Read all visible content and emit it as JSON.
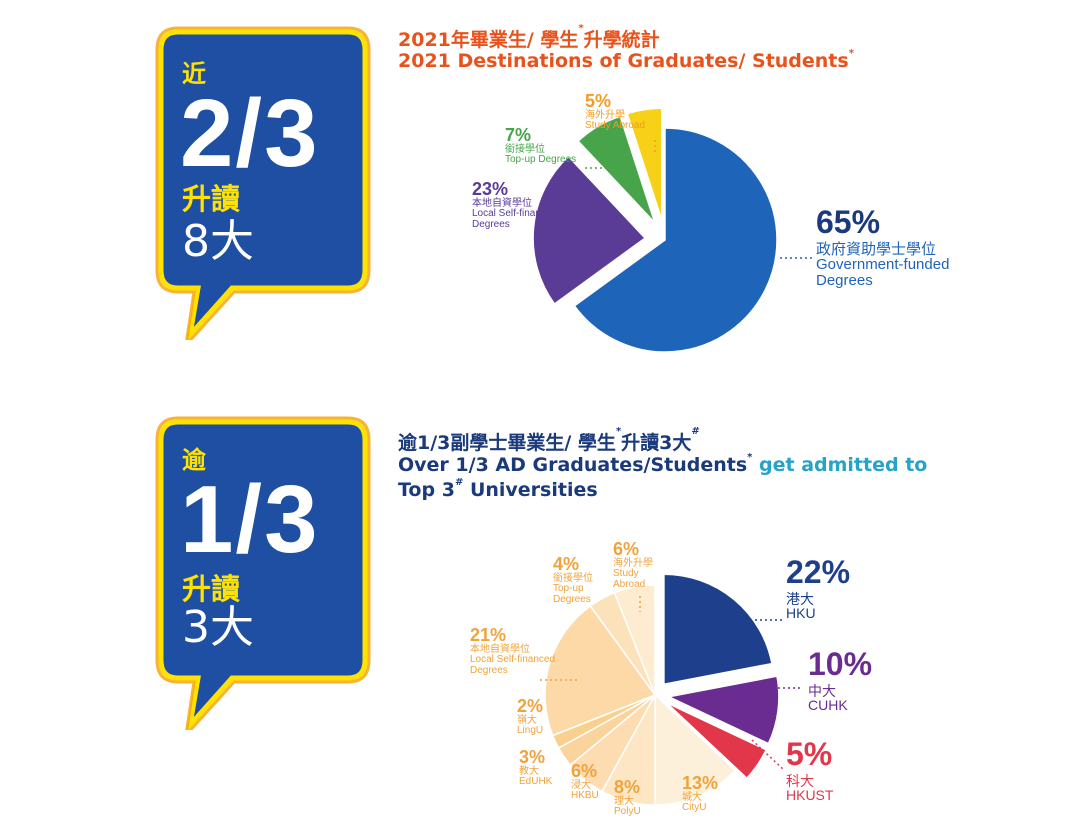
{
  "colors": {
    "bubble_fill": "#1f4fa3",
    "bubble_border": "#ffe200",
    "bubble_glow": "#f5a000",
    "title_orange": "#e8531d",
    "title_navy": "#1b3a7b",
    "title_teal": "#25a3c9",
    "gov_blue": "#1e64b8",
    "self_fin_purple": "#5a3c96",
    "topup_green": "#47a44b",
    "abroad_orange": "#f39b1f",
    "abroad_yellow": "#f7d117",
    "hku_navy": "#1d3f8c",
    "cuhk_purple": "#6a2c91",
    "hkust_red": "#e2364a",
    "peach_text": "#f0a33a",
    "peach_light": "#fbe3bf"
  },
  "section1": {
    "bubble": {
      "prefix": "近",
      "fraction": "2/3",
      "action": "升讀",
      "universities": "8大"
    },
    "title_zh": "2021年畢業生/ 學生",
    "title_zh_mark": "*",
    "title_zh_tail": "升學統計",
    "title_en": "2021 Destinations of Graduates/ Students",
    "title_en_mark": "*",
    "labels": {
      "gov": {
        "pct": "65%",
        "zh": "政府資助學士學位",
        "en1": "Government-funded",
        "en2": "Degrees"
      },
      "local": {
        "pct": "23%",
        "zh": "本地自資學位",
        "en1": "Local Self-financed",
        "en2": "Degrees"
      },
      "topup": {
        "pct": "7%",
        "zh": "銜接學位",
        "en1": "Top-up Degrees"
      },
      "abroad": {
        "pct": "5%",
        "zh": "海外升學",
        "en1": "Study Abroad"
      }
    }
  },
  "section2": {
    "bubble": {
      "prefix": "逾",
      "fraction": "1/3",
      "action": "升讀",
      "universities": "3大"
    },
    "title_zh": "逾1/3副學士畢業生/ 學生",
    "title_zh_mark": "*",
    "title_zh_tail": "升讀3大",
    "title_zh_hash": "#",
    "title_en_1a": "Over 1/3 AD Graduates/Students",
    "title_en_1_mark": "*",
    "title_en_1b": " get admitted to",
    "title_en_2a": "Top 3",
    "title_en_2_hash": "#",
    "title_en_2b": " Universities",
    "labels": {
      "hku": {
        "pct": "22%",
        "zh": "港大",
        "en": "HKU"
      },
      "cuhk": {
        "pct": "10%",
        "zh": "中大",
        "en": "CUHK"
      },
      "hkust": {
        "pct": "5%",
        "zh": "科大",
        "en": "HKUST"
      },
      "cityu": {
        "pct": "13%",
        "zh": "城大",
        "en": "CityU"
      },
      "polyu": {
        "pct": "8%",
        "zh": "理大",
        "en": "PolyU"
      },
      "hkbu": {
        "pct": "6%",
        "zh": "浸大",
        "en": "HKBU"
      },
      "eduhk": {
        "pct": "3%",
        "zh": "教大",
        "en": "EdUHK"
      },
      "lingu": {
        "pct": "2%",
        "zh": "嶺大",
        "en": "LingU"
      },
      "local": {
        "pct": "21%",
        "zh": "本地自資學位",
        "en1": "Local Self-financed",
        "en2": "Degrees"
      },
      "topup": {
        "pct": "4%",
        "zh": "銜接學位",
        "en1": "Top-up",
        "en2": "Degrees"
      },
      "abroad": {
        "pct": "6%",
        "zh": "海外升學",
        "en1": "Study",
        "en2": "Abroad"
      }
    }
  },
  "chart_data": [
    {
      "type": "pie",
      "title": "2021 Destinations of Graduates/ Students",
      "categories": [
        "Government-funded Degrees",
        "Local Self-financed Degrees",
        "Top-up Degrees",
        "Study Abroad"
      ],
      "values": [
        65,
        23,
        7,
        5
      ]
    },
    {
      "type": "pie",
      "title": "Over 1/3 AD Graduates/Students get admitted to Top 3 Universities",
      "categories": [
        "HKU",
        "CUHK",
        "HKUST",
        "CityU",
        "PolyU",
        "HKBU",
        "EdUHK",
        "LingU",
        "Local Self-financed Degrees",
        "Top-up Degrees",
        "Study Abroad"
      ],
      "values": [
        22,
        10,
        5,
        13,
        8,
        6,
        3,
        2,
        21,
        4,
        6
      ]
    }
  ]
}
